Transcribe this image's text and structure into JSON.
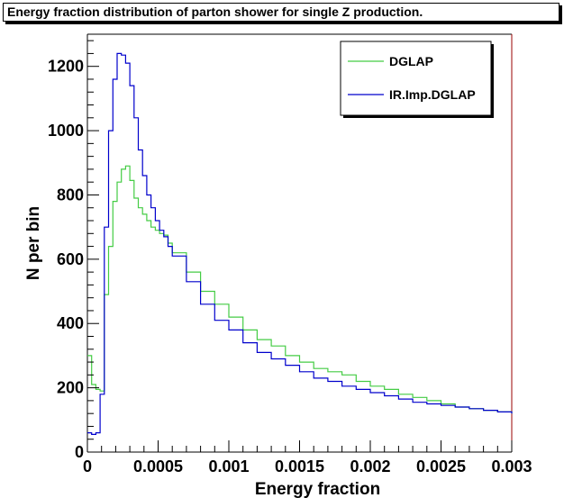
{
  "chart_data": {
    "type": "line",
    "title": "Energy fraction distribution of parton shower for single Z production.",
    "xlabel": "Energy fraction",
    "ylabel": "N per bin",
    "xlim": [
      0,
      0.003
    ],
    "ylim": [
      0,
      1300
    ],
    "xticks": [
      0,
      0.0005,
      0.001,
      0.0015,
      0.002,
      0.0025,
      0.003
    ],
    "xtick_labels": [
      "0",
      "0.0005",
      "0.001",
      "0.0015",
      "0.002",
      "0.0025",
      "0.003"
    ],
    "yticks": [
      0,
      200,
      400,
      600,
      800,
      1000,
      1200
    ],
    "ytick_labels": [
      "0",
      "200",
      "400",
      "600",
      "800",
      "1000",
      "1200"
    ],
    "legend_position": "top-right",
    "series": [
      {
        "name": "DGLAP",
        "color": "#44cc44",
        "x": [
          0.0,
          3e-05,
          6e-05,
          9e-05,
          0.00012,
          0.00015,
          0.00018,
          0.00021,
          0.00024,
          0.00027,
          0.0003,
          0.00033,
          0.00036,
          0.00039,
          0.00042,
          0.00045,
          0.00048,
          0.00051,
          0.00054,
          0.00057,
          0.0006,
          0.0007,
          0.0008,
          0.0009,
          0.001,
          0.0011,
          0.0012,
          0.0013,
          0.0014,
          0.0015,
          0.0016,
          0.0017,
          0.0018,
          0.0019,
          0.002,
          0.0021,
          0.0022,
          0.0023,
          0.0024,
          0.0025,
          0.0026,
          0.0027,
          0.0028,
          0.0029,
          0.003
        ],
        "values": [
          300,
          210,
          195,
          190,
          490,
          640,
          780,
          840,
          880,
          890,
          845,
          790,
          760,
          740,
          720,
          700,
          690,
          680,
          675,
          650,
          620,
          560,
          500,
          460,
          420,
          380,
          350,
          330,
          300,
          280,
          260,
          250,
          240,
          220,
          205,
          195,
          180,
          170,
          160,
          150,
          140,
          135,
          130,
          125,
          120
        ]
      },
      {
        "name": "IR.Imp.DGLAP",
        "color": "#0000cc",
        "x": [
          0.0,
          3e-05,
          6e-05,
          9e-05,
          0.00012,
          0.00015,
          0.00018,
          0.00021,
          0.00024,
          0.00027,
          0.0003,
          0.00033,
          0.00036,
          0.00039,
          0.00042,
          0.00045,
          0.00048,
          0.00051,
          0.00054,
          0.00057,
          0.0006,
          0.0007,
          0.0008,
          0.0009,
          0.001,
          0.0011,
          0.0012,
          0.0013,
          0.0014,
          0.0015,
          0.0016,
          0.0017,
          0.0018,
          0.0019,
          0.002,
          0.0021,
          0.0022,
          0.0023,
          0.0024,
          0.0025,
          0.0026,
          0.0027,
          0.0028,
          0.0029,
          0.003
        ],
        "values": [
          60,
          55,
          60,
          180,
          700,
          1000,
          1160,
          1240,
          1235,
          1210,
          1140,
          1040,
          940,
          860,
          800,
          760,
          720,
          690,
          670,
          640,
          610,
          530,
          460,
          410,
          380,
          340,
          310,
          290,
          270,
          250,
          230,
          220,
          205,
          195,
          185,
          175,
          165,
          155,
          150,
          145,
          140,
          135,
          130,
          125,
          120
        ]
      }
    ]
  }
}
